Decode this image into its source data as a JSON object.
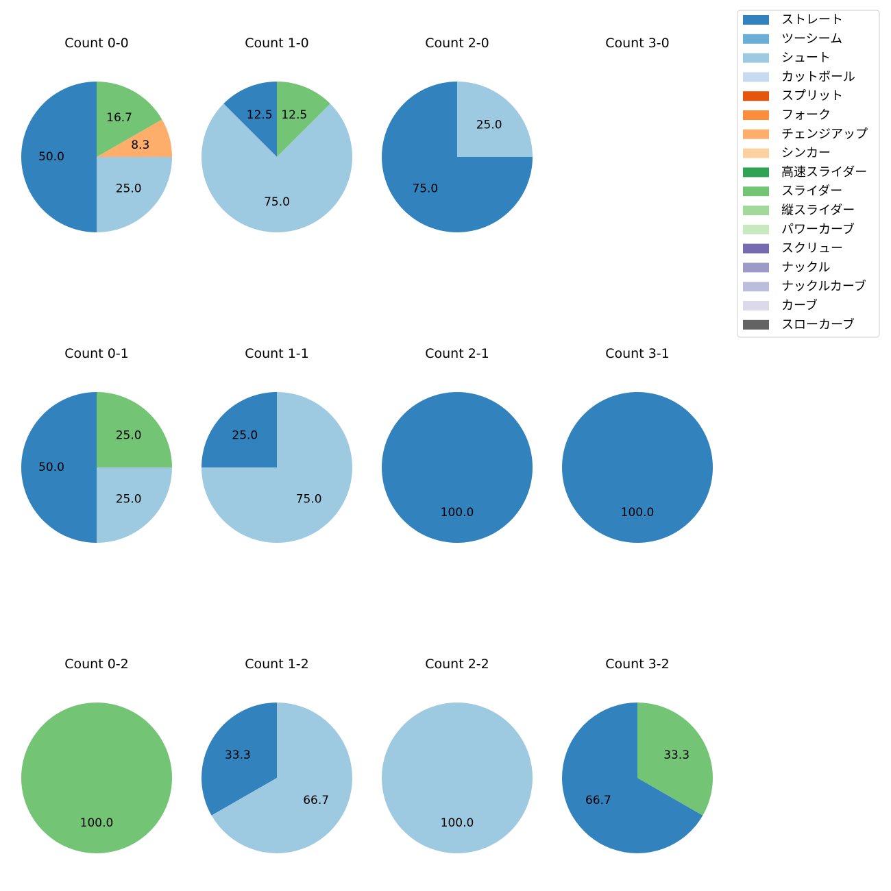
{
  "chart_data": {
    "type": "pie",
    "legend_position": "top-right",
    "legend": [
      {
        "name": "ストレート",
        "color": "#3182bd"
      },
      {
        "name": "ツーシーム",
        "color": "#6baed6"
      },
      {
        "name": "シュート",
        "color": "#9ecae1"
      },
      {
        "name": "カットボール",
        "color": "#c6dbef"
      },
      {
        "name": "スプリット",
        "color": "#e6550d"
      },
      {
        "name": "フォーク",
        "color": "#fd8d3c"
      },
      {
        "name": "チェンジアップ",
        "color": "#fdae6b"
      },
      {
        "name": "シンカー",
        "color": "#fdd0a2"
      },
      {
        "name": "高速スライダー",
        "color": "#31a354"
      },
      {
        "name": "スライダー",
        "color": "#74c476"
      },
      {
        "name": "縦スライダー",
        "color": "#a1d99b"
      },
      {
        "name": "パワーカーブ",
        "color": "#c7e9c0"
      },
      {
        "name": "スクリュー",
        "color": "#756bb1"
      },
      {
        "name": "ナックル",
        "color": "#9e9ac8"
      },
      {
        "name": "ナックルカーブ",
        "color": "#bcbddc"
      },
      {
        "name": "カーブ",
        "color": "#dadaeb"
      },
      {
        "name": "スローカーブ",
        "color": "#636363"
      }
    ],
    "pies": [
      {
        "title": "Count 0-0",
        "slices": [
          {
            "pitch": "ストレート",
            "value": 50.0
          },
          {
            "pitch": "シュート",
            "value": 25.0
          },
          {
            "pitch": "チェンジアップ",
            "value": 8.3
          },
          {
            "pitch": "スライダー",
            "value": 16.7
          }
        ]
      },
      {
        "title": "Count 1-0",
        "slices": [
          {
            "pitch": "ストレート",
            "value": 12.5
          },
          {
            "pitch": "シュート",
            "value": 75.0
          },
          {
            "pitch": "スライダー",
            "value": 12.5
          }
        ]
      },
      {
        "title": "Count 2-0",
        "slices": [
          {
            "pitch": "ストレート",
            "value": 75.0
          },
          {
            "pitch": "シュート",
            "value": 25.0
          }
        ]
      },
      {
        "title": "Count 3-0",
        "slices": []
      },
      {
        "title": "Count 0-1",
        "slices": [
          {
            "pitch": "ストレート",
            "value": 50.0
          },
          {
            "pitch": "シュート",
            "value": 25.0
          },
          {
            "pitch": "スライダー",
            "value": 25.0
          }
        ]
      },
      {
        "title": "Count 1-1",
        "slices": [
          {
            "pitch": "ストレート",
            "value": 25.0
          },
          {
            "pitch": "シュート",
            "value": 75.0
          }
        ]
      },
      {
        "title": "Count 2-1",
        "slices": [
          {
            "pitch": "ストレート",
            "value": 100.0
          }
        ]
      },
      {
        "title": "Count 3-1",
        "slices": [
          {
            "pitch": "ストレート",
            "value": 100.0
          }
        ]
      },
      {
        "title": "Count 0-2",
        "slices": [
          {
            "pitch": "スライダー",
            "value": 100.0
          }
        ]
      },
      {
        "title": "Count 1-2",
        "slices": [
          {
            "pitch": "ストレート",
            "value": 33.3
          },
          {
            "pitch": "シュート",
            "value": 66.7
          }
        ]
      },
      {
        "title": "Count 2-2",
        "slices": [
          {
            "pitch": "シュート",
            "value": 100.0
          }
        ]
      },
      {
        "title": "Count 3-2",
        "slices": [
          {
            "pitch": "ストレート",
            "value": 66.7
          },
          {
            "pitch": "スライダー",
            "value": 33.3
          }
        ]
      }
    ]
  }
}
